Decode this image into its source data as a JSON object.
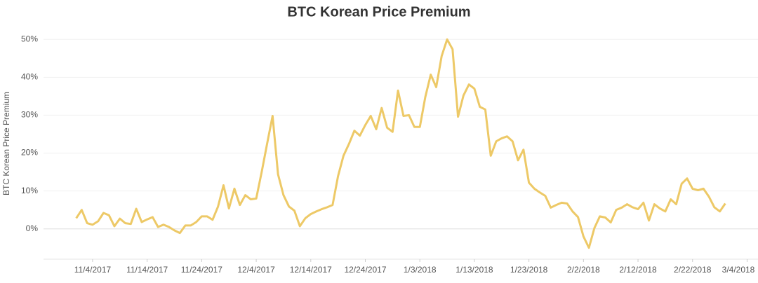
{
  "chart_data": {
    "type": "line",
    "title": "BTC Korean Price Premium",
    "y_label": "BTC Korean Price Premium",
    "x": [
      "11/1/2017",
      "11/2/2017",
      "11/3/2017",
      "11/4/2017",
      "11/5/2017",
      "11/6/2017",
      "11/7/2017",
      "11/8/2017",
      "11/9/2017",
      "11/10/2017",
      "11/11/2017",
      "11/12/2017",
      "11/13/2017",
      "11/14/2017",
      "11/15/2017",
      "11/16/2017",
      "11/17/2017",
      "11/18/2017",
      "11/19/2017",
      "11/20/2017",
      "11/21/2017",
      "11/22/2017",
      "11/23/2017",
      "11/24/2017",
      "11/25/2017",
      "11/26/2017",
      "11/27/2017",
      "11/28/2017",
      "11/29/2017",
      "11/30/2017",
      "12/1/2017",
      "12/2/2017",
      "12/3/2017",
      "12/4/2017",
      "12/5/2017",
      "12/6/2017",
      "12/7/2017",
      "12/8/2017",
      "12/9/2017",
      "12/10/2017",
      "12/11/2017",
      "12/12/2017",
      "12/13/2017",
      "12/14/2017",
      "12/15/2017",
      "12/16/2017",
      "12/17/2017",
      "12/18/2017",
      "12/19/2017",
      "12/20/2017",
      "12/21/2017",
      "12/22/2017",
      "12/23/2017",
      "12/24/2017",
      "12/25/2017",
      "12/26/2017",
      "12/27/2017",
      "12/28/2017",
      "12/29/2017",
      "12/30/2017",
      "12/31/2017",
      "1/1/2018",
      "1/2/2018",
      "1/3/2018",
      "1/4/2018",
      "1/5/2018",
      "1/6/2018",
      "1/7/2018",
      "1/8/2018",
      "1/9/2018",
      "1/10/2018",
      "1/11/2018",
      "1/12/2018",
      "1/13/2018",
      "1/14/2018",
      "1/15/2018",
      "1/16/2018",
      "1/17/2018",
      "1/18/2018",
      "1/19/2018",
      "1/20/2018",
      "1/21/2018",
      "1/22/2018",
      "1/23/2018",
      "1/24/2018",
      "1/25/2018",
      "1/26/2018",
      "1/27/2018",
      "1/28/2018",
      "1/29/2018",
      "1/30/2018",
      "1/31/2018",
      "2/1/2018",
      "2/2/2018",
      "2/3/2018",
      "2/4/2018",
      "2/5/2018",
      "2/6/2018",
      "2/7/2018",
      "2/8/2018",
      "2/9/2018",
      "2/10/2018",
      "2/11/2018",
      "2/12/2018",
      "2/13/2018",
      "2/14/2018",
      "2/15/2018",
      "2/16/2018",
      "2/17/2018",
      "2/18/2018",
      "2/19/2018",
      "2/20/2018",
      "2/21/2018",
      "2/22/2018",
      "2/23/2018",
      "2/24/2018",
      "2/25/2018",
      "2/26/2018",
      "2/27/2018",
      "2/28/2018"
    ],
    "values": [
      2.8,
      5.0,
      1.5,
      1.1,
      2.0,
      4.2,
      3.6,
      0.7,
      2.7,
      1.5,
      1.3,
      5.3,
      1.8,
      2.5,
      3.1,
      0.5,
      1.1,
      0.5,
      -0.4,
      -1.1,
      0.9,
      0.9,
      1.8,
      3.3,
      3.3,
      2.4,
      5.9,
      11.5,
      5.4,
      10.6,
      6.3,
      8.9,
      7.8,
      8.0,
      15.0,
      22.5,
      29.8,
      14.4,
      8.9,
      5.9,
      4.8,
      0.7,
      2.8,
      3.9,
      4.6,
      5.2,
      5.7,
      6.3,
      13.9,
      19.3,
      22.4,
      25.9,
      24.6,
      27.4,
      29.8,
      26.3,
      31.9,
      26.7,
      25.6,
      36.5,
      29.8,
      30.0,
      26.9,
      26.9,
      34.8,
      40.7,
      37.4,
      45.6,
      50.0,
      47.4,
      29.6,
      35.2,
      38.1,
      37.0,
      32.2,
      31.5,
      19.3,
      23.1,
      23.9,
      24.4,
      23.1,
      18.1,
      20.9,
      12.2,
      10.6,
      9.6,
      8.7,
      5.6,
      6.3,
      6.9,
      6.7,
      4.6,
      3.1,
      -2.0,
      -5.0,
      0.2,
      3.3,
      3.0,
      1.7,
      5.0,
      5.6,
      6.5,
      5.7,
      5.2,
      6.9,
      2.2,
      6.5,
      5.4,
      4.6,
      7.8,
      6.5,
      11.9,
      13.3,
      10.6,
      10.2,
      10.6,
      8.5,
      5.7,
      4.6,
      6.7
    ],
    "color": "#edc967",
    "xlim": [
      "10/26/2017",
      "3/6/2018"
    ],
    "xticks": [
      "11/4/2017",
      "11/14/2017",
      "11/24/2017",
      "12/4/2017",
      "12/14/2017",
      "12/24/2017",
      "1/3/2018",
      "1/13/2018",
      "1/23/2018",
      "2/2/2018",
      "2/12/2018",
      "2/22/2018",
      "3/4/2018"
    ],
    "ylim": [
      -8,
      53
    ],
    "yticks": [
      {
        "value": 0,
        "label": "0%"
      },
      {
        "value": 10,
        "label": "10%"
      },
      {
        "value": 20,
        "label": "20%"
      },
      {
        "value": 30,
        "label": "30%"
      },
      {
        "value": 40,
        "label": "40%"
      },
      {
        "value": 50,
        "label": "50%"
      }
    ],
    "grid": true
  }
}
